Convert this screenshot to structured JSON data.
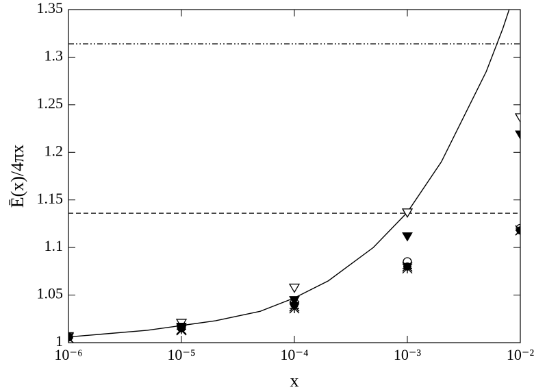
{
  "chart_data": {
    "type": "scatter",
    "xlabel": "x",
    "ylabel": "Ē(x)/4πx",
    "xscale": "log",
    "xlim": [
      1e-06,
      0.01
    ],
    "ylim": [
      1,
      1.35
    ],
    "xticks": [
      {
        "value": 1e-06,
        "label": "10⁻⁶"
      },
      {
        "value": 1e-05,
        "label": "10⁻⁵"
      },
      {
        "value": 0.0001,
        "label": "10⁻⁴"
      },
      {
        "value": 0.001,
        "label": "10⁻³"
      },
      {
        "value": 0.01,
        "label": "10⁻²"
      }
    ],
    "yticks": [
      1,
      1.05,
      1.1,
      1.15,
      1.2,
      1.25,
      1.3,
      1.35
    ],
    "x": [
      1e-06,
      1e-05,
      0.0001,
      0.001,
      0.01
    ],
    "series": [
      {
        "marker": "triangle-down-open",
        "color": "#000000",
        "values": [
          1.007,
          1.021,
          1.058,
          1.137,
          1.237
        ]
      },
      {
        "marker": "triangle-down-filled",
        "color": "#000000",
        "values": [
          1.006,
          1.017,
          1.045,
          1.112,
          1.219
        ]
      },
      {
        "marker": "circle-open",
        "color": "#000000",
        "values": [
          1.006,
          1.016,
          1.042,
          1.085,
          1.12
        ]
      },
      {
        "marker": "circle-filled",
        "color": "#000000",
        "values": [
          1.006,
          1.015,
          1.04,
          1.08,
          1.118
        ]
      },
      {
        "marker": "cross",
        "color": "#000000",
        "values": [
          1.005,
          1.013,
          1.038,
          1.08,
          1.118
        ]
      },
      {
        "marker": "star",
        "color": "#000000",
        "values": [
          1.005,
          1.014,
          1.036,
          1.078,
          1.118
        ]
      }
    ],
    "curve": {
      "color": "#000000",
      "x": [
        1e-06,
        2e-06,
        5e-06,
        1e-05,
        2e-05,
        5e-05,
        0.0001,
        0.0002,
        0.0005,
        0.001,
        0.002,
        0.003,
        0.005,
        0.007,
        0.0085
      ],
      "values": [
        1.006,
        1.009,
        1.013,
        1.018,
        1.023,
        1.033,
        1.047,
        1.065,
        1.1,
        1.137,
        1.19,
        1.232,
        1.285,
        1.33,
        1.36
      ]
    },
    "reference_lines": [
      {
        "value": 1.314,
        "style": "dash-dot-dot",
        "color": "#000000"
      },
      {
        "value": 1.136,
        "style": "dashed",
        "color": "#000000"
      }
    ]
  }
}
